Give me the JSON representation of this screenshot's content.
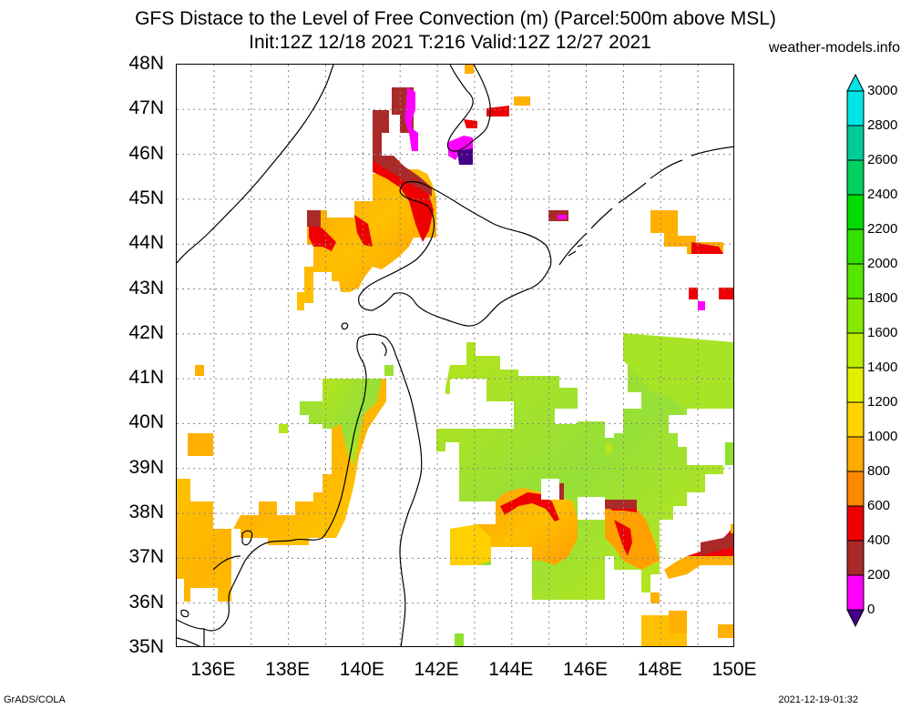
{
  "title_line1": "GFS Distace to the Level of Free Convection (m) (Parcel:500m above MSL)",
  "title_line2": "Init:12Z 12/18 2021 T:216 Valid:12Z 12/27 2021",
  "site": "weather-models.info",
  "footer_left": "GrADS/COLA",
  "footer_right": "2021-12-19-01:32",
  "lat_labels": [
    "48N",
    "47N",
    "46N",
    "45N",
    "44N",
    "43N",
    "42N",
    "41N",
    "40N",
    "39N",
    "38N",
    "37N",
    "36N",
    "35N"
  ],
  "lon_labels": [
    "136E",
    "138E",
    "140E",
    "142E",
    "144E",
    "146E",
    "148E",
    "150E"
  ],
  "colorbar": {
    "labels": [
      "3000",
      "2800",
      "2600",
      "2400",
      "2200",
      "2000",
      "1800",
      "1600",
      "1400",
      "1200",
      "1000",
      "800",
      "600",
      "400",
      "200",
      "0"
    ],
    "colors": [
      "#00e5e5",
      "#00cc99",
      "#00d060",
      "#00dc00",
      "#33e000",
      "#55e600",
      "#88e800",
      "#bbee00",
      "#e6ee00",
      "#ffd400",
      "#ffaa00",
      "#ff8800",
      "#ee0000",
      "#aa2a2a",
      "#ff00ff",
      "#440088"
    ]
  },
  "map": {
    "lon_range": [
      135,
      150
    ],
    "lat_range": [
      35,
      48
    ],
    "colors": {
      "red": "#ee0000",
      "brown": "#aa2a2a",
      "magenta": "#ff00ff",
      "purple": "#440088"
    }
  }
}
